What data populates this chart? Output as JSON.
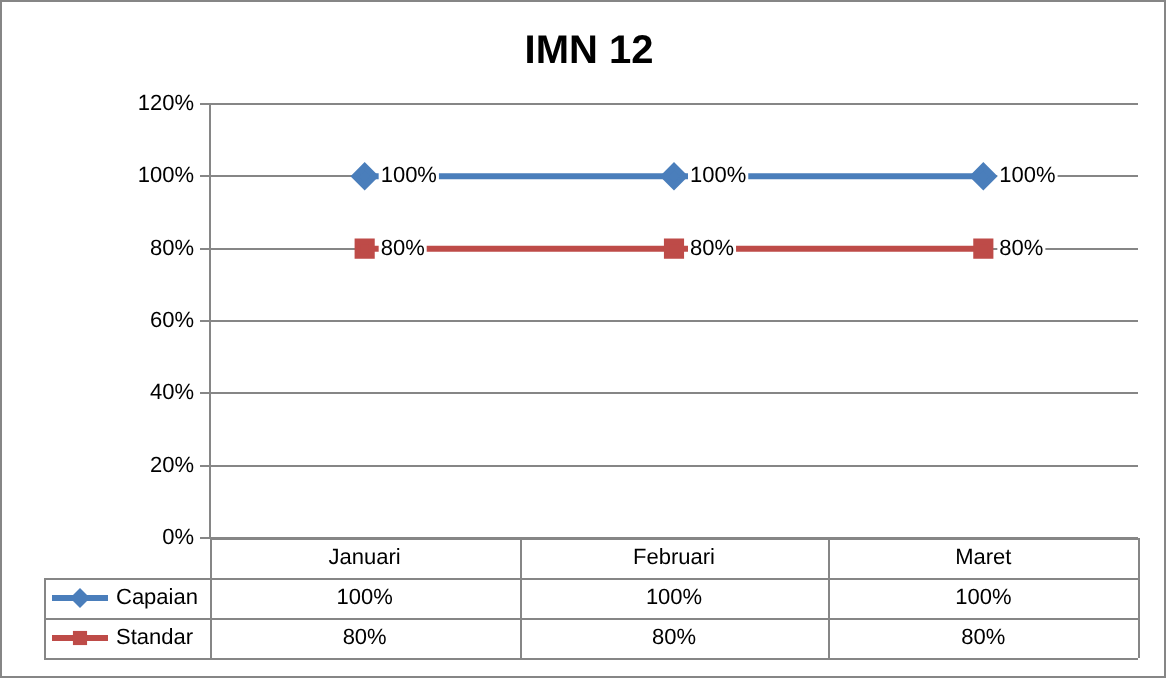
{
  "chart_data": {
    "type": "line",
    "title": "IMN 12",
    "categories": [
      "Januari",
      "Februari",
      "Maret"
    ],
    "series": [
      {
        "name": "Capaian",
        "color": "#4a7ebb",
        "marker": "diamond",
        "values": [
          100,
          100,
          100
        ],
        "value_labels": [
          "100%",
          "100%",
          "100%"
        ]
      },
      {
        "name": "Standar",
        "color": "#be4b48",
        "marker": "square",
        "values": [
          80,
          80,
          80
        ],
        "value_labels": [
          "80%",
          "80%",
          "80%"
        ]
      }
    ],
    "ylim": [
      0,
      120
    ],
    "yticks": [
      {
        "value": 0,
        "label": "0%"
      },
      {
        "value": 20,
        "label": "20%"
      },
      {
        "value": 40,
        "label": "40%"
      },
      {
        "value": 60,
        "label": "60%"
      },
      {
        "value": 80,
        "label": "80%"
      },
      {
        "value": 100,
        "label": "100%"
      },
      {
        "value": 120,
        "label": "120%"
      }
    ],
    "grid": "y",
    "legend": "bottom",
    "line_style": "solid"
  }
}
